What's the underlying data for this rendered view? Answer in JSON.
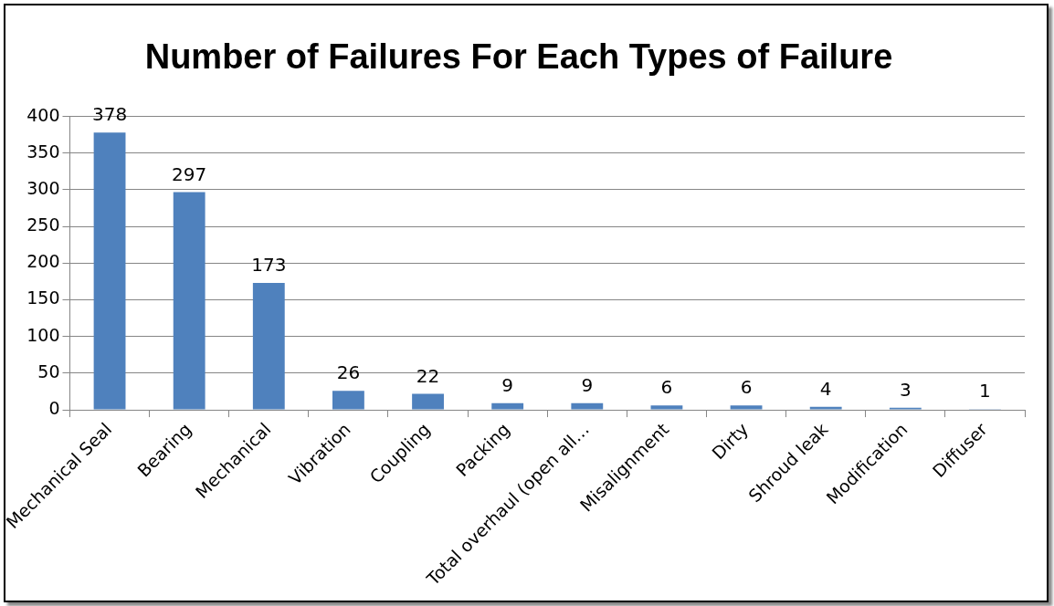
{
  "chart_data": {
    "type": "bar",
    "title": "Number of Failures For Each Types of Failure",
    "categories": [
      "Mechanical Seal",
      "Bearing",
      "Mechanical",
      "Vibration",
      "Coupling",
      "Packing",
      "Total overhaul (open all…",
      "Misalignment",
      "Dirty",
      "Shroud leak",
      "Modification",
      "Diffuser"
    ],
    "values": [
      378,
      297,
      173,
      26,
      22,
      9,
      9,
      6,
      6,
      4,
      3,
      1
    ],
    "color": "#4f81bd",
    "ylim": [
      0,
      400
    ],
    "yticks": [
      0,
      50,
      100,
      150,
      200,
      250,
      300,
      350,
      400
    ],
    "grid": "y",
    "data_labels": true
  }
}
